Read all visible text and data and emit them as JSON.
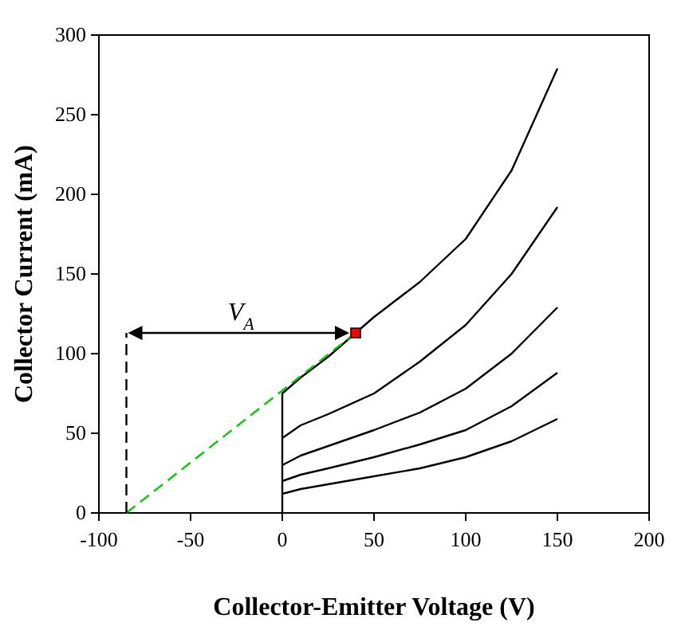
{
  "chart_data": {
    "type": "line",
    "xlabel": "Collector-Emitter Voltage (V)",
    "ylabel": "Collector Current (mA)",
    "xlim": [
      -100,
      200
    ],
    "xticks": [
      -100,
      -50,
      0,
      50,
      100,
      150,
      200
    ],
    "ylim": [
      0,
      300
    ],
    "yticks": [
      0,
      50,
      100,
      150,
      200,
      250,
      300
    ],
    "grid": false,
    "marker": "none",
    "line_style": "solid",
    "series": [
      {
        "color": "#000000",
        "x": [
          0,
          0,
          10,
          25,
          40,
          50,
          75,
          100,
          125,
          150
        ],
        "values": [
          0,
          75,
          85,
          98,
          113,
          123,
          145,
          172,
          215,
          279
        ]
      },
      {
        "color": "#000000",
        "x": [
          0,
          10,
          25,
          50,
          75,
          100,
          125,
          150
        ],
        "values": [
          47,
          55,
          62,
          75,
          95,
          118,
          150,
          192
        ]
      },
      {
        "color": "#000000",
        "x": [
          0,
          10,
          25,
          50,
          75,
          100,
          125,
          150
        ],
        "values": [
          30,
          36,
          42,
          52,
          63,
          78,
          100,
          129
        ]
      },
      {
        "color": "#000000",
        "x": [
          0,
          10,
          25,
          50,
          75,
          100,
          125,
          150
        ],
        "values": [
          20,
          24,
          28,
          35,
          43,
          52,
          67,
          88
        ]
      },
      {
        "color": "#000000",
        "x": [
          0,
          10,
          25,
          50,
          75,
          100,
          125,
          150
        ],
        "values": [
          12,
          15,
          18,
          23,
          28,
          35,
          45,
          59
        ]
      },
      {
        "color": "#00cc00",
        "line_style": "dashed",
        "x": [
          -85,
          40
        ],
        "values": [
          0,
          113
        ]
      },
      {
        "color": "#000000",
        "line_style": "dashed",
        "x": [
          -85,
          -85
        ],
        "values": [
          0,
          113
        ]
      },
      {
        "type": "scatter",
        "marker": "square",
        "color": "#ff0000",
        "x": [
          40
        ],
        "values": [
          113
        ]
      }
    ],
    "annotations": [
      "V$_{A}$"
    ]
  }
}
